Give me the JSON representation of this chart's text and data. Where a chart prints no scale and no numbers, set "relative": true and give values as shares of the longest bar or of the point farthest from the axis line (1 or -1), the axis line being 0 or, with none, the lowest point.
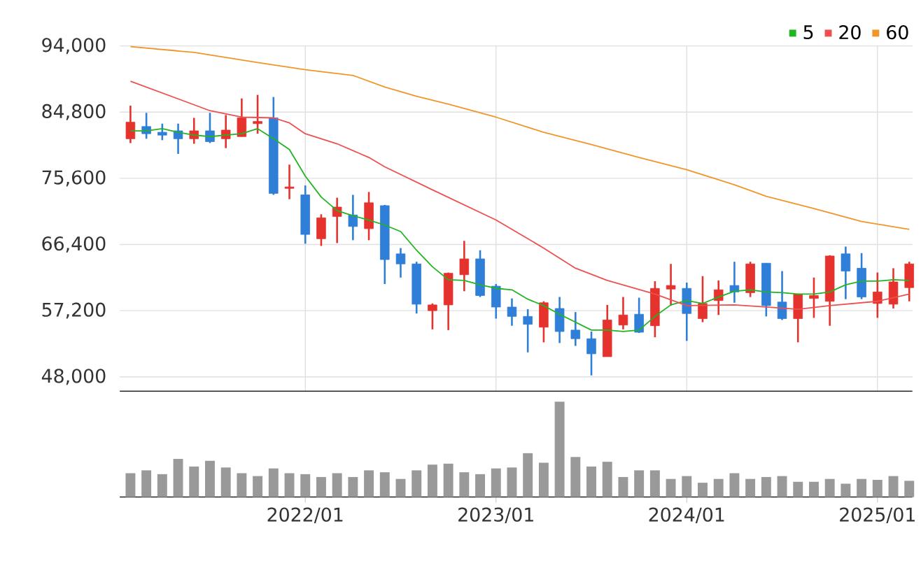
{
  "chart_data": [
    {
      "type": "candlestick",
      "x": [
        "2021-02",
        "2021-03",
        "2021-04",
        "2021-05",
        "2021-06",
        "2021-07",
        "2021-08",
        "2021-09",
        "2021-10",
        "2021-11",
        "2021-12",
        "2022-01",
        "2022-02",
        "2022-03",
        "2022-04",
        "2022-05",
        "2022-06",
        "2022-07",
        "2022-08",
        "2022-09",
        "2022-10",
        "2022-11",
        "2022-12",
        "2023-01",
        "2023-02",
        "2023-03",
        "2023-04",
        "2023-05",
        "2023-06",
        "2023-07",
        "2023-08",
        "2023-09",
        "2023-10",
        "2023-11",
        "2023-12",
        "2024-01",
        "2024-02",
        "2024-03",
        "2024-04",
        "2024-05",
        "2024-06",
        "2024-07",
        "2024-08",
        "2024-09",
        "2024-10",
        "2024-11",
        "2024-12",
        "2025-01",
        "2025-02",
        "2025-03"
      ],
      "ohlc": [
        [
          81100,
          85700,
          80500,
          83400
        ],
        [
          82800,
          84700,
          81100,
          81800
        ],
        [
          82000,
          83200,
          80900,
          81600
        ],
        [
          82200,
          83200,
          79000,
          81100
        ],
        [
          81100,
          84000,
          80400,
          82200
        ],
        [
          82200,
          84700,
          80500,
          80700
        ],
        [
          81100,
          84400,
          79800,
          82300
        ],
        [
          81400,
          86700,
          81400,
          84000
        ],
        [
          83200,
          87200,
          81800,
          83500
        ],
        [
          84000,
          86900,
          73300,
          73500
        ],
        [
          74200,
          77500,
          72700,
          74400
        ],
        [
          73300,
          74600,
          66500,
          67800
        ],
        [
          67200,
          70600,
          66200,
          70100
        ],
        [
          70300,
          72900,
          66600,
          71600
        ],
        [
          70500,
          73300,
          67000,
          68900
        ],
        [
          68600,
          73700,
          67000,
          72200
        ],
        [
          71800,
          71900,
          60900,
          64300
        ],
        [
          65100,
          65900,
          61800,
          63700
        ],
        [
          63700,
          64000,
          56800,
          58100
        ],
        [
          57200,
          58200,
          54600,
          58000
        ],
        [
          58000,
          62500,
          54500,
          62400
        ],
        [
          62200,
          66900,
          59900,
          64400
        ],
        [
          64400,
          65600,
          59100,
          59300
        ],
        [
          60600,
          60900,
          56100,
          57700
        ],
        [
          57700,
          58900,
          55100,
          56400
        ],
        [
          56400,
          57400,
          51400,
          55300
        ],
        [
          54900,
          58500,
          52800,
          58300
        ],
        [
          57500,
          59100,
          52700,
          54300
        ],
        [
          54500,
          57000,
          52300,
          53300
        ],
        [
          53300,
          54300,
          48200,
          51200
        ],
        [
          50800,
          58000,
          50800,
          55900
        ],
        [
          55200,
          59100,
          54600,
          56600
        ],
        [
          56700,
          59000,
          54100,
          54200
        ],
        [
          55100,
          61300,
          53500,
          60300
        ],
        [
          60200,
          63700,
          57900,
          60700
        ],
        [
          60300,
          61100,
          53000,
          56800
        ],
        [
          56100,
          62000,
          55600,
          58200
        ],
        [
          58600,
          61400,
          56600,
          60100
        ],
        [
          60700,
          64000,
          58300,
          59800
        ],
        [
          59700,
          64000,
          59100,
          63700
        ],
        [
          63800,
          63800,
          56400,
          57900
        ],
        [
          58400,
          62700,
          55900,
          56100
        ],
        [
          56100,
          59500,
          52800,
          59500
        ],
        [
          58900,
          61800,
          56200,
          59300
        ],
        [
          58500,
          64900,
          55100,
          64800
        ],
        [
          65100,
          66100,
          58800,
          62700
        ],
        [
          63100,
          65200,
          58800,
          59100
        ],
        [
          58200,
          62500,
          56200,
          59800
        ],
        [
          58100,
          63100,
          57500,
          61200
        ],
        [
          60400,
          64000,
          58500,
          63700
        ]
      ],
      "colors": [
        "#e5322d",
        "#2f7ed8",
        "#2f7ed8",
        "#2f7ed8",
        "#e5322d",
        "#2f7ed8",
        "#e5322d",
        "#e5322d",
        "#e5322d",
        "#2f7ed8",
        "#e5322d",
        "#2f7ed8",
        "#e5322d",
        "#e5322d",
        "#2f7ed8",
        "#e5322d",
        "#2f7ed8",
        "#2f7ed8",
        "#2f7ed8",
        "#e5322d",
        "#e5322d",
        "#e5322d",
        "#2f7ed8",
        "#2f7ed8",
        "#2f7ed8",
        "#2f7ed8",
        "#e5322d",
        "#2f7ed8",
        "#2f7ed8",
        "#2f7ed8",
        "#e5322d",
        "#e5322d",
        "#2f7ed8",
        "#e5322d",
        "#e5322d",
        "#2f7ed8",
        "#e5322d",
        "#e5322d",
        "#2f7ed8",
        "#e5322d",
        "#2f7ed8",
        "#2f7ed8",
        "#e5322d",
        "#e5322d",
        "#e5322d",
        "#2f7ed8",
        "#2f7ed8",
        "#e5322d",
        "#e5322d",
        "#e5322d"
      ],
      "series": [
        {
          "name": "5",
          "type": "line",
          "color": "#22b422",
          "x": [
            "2021-02",
            "2021-03",
            "2021-04",
            "2021-05",
            "2021-06",
            "2021-07",
            "2021-08",
            "2021-09",
            "2021-10",
            "2021-11",
            "2021-12",
            "2022-01",
            "2022-02",
            "2022-03",
            "2022-04",
            "2022-05",
            "2022-06",
            "2022-07",
            "2022-08",
            "2022-09",
            "2022-10",
            "2022-11",
            "2022-12",
            "2023-01",
            "2023-02",
            "2023-03",
            "2023-04",
            "2023-05",
            "2023-06",
            "2023-07",
            "2023-08",
            "2023-09",
            "2023-10",
            "2023-11",
            "2023-12",
            "2024-01",
            "2024-02",
            "2024-03",
            "2024-04",
            "2024-05",
            "2024-06",
            "2024-07",
            "2024-08",
            "2024-09",
            "2024-10",
            "2024-11",
            "2024-12",
            "2025-01",
            "2025-02",
            "2025-03"
          ],
          "values": [
            82200,
            82200,
            82500,
            82000,
            81600,
            81400,
            81600,
            81800,
            82500,
            81100,
            79600,
            75900,
            73000,
            71100,
            70400,
            69800,
            69100,
            68200,
            65600,
            63300,
            61500,
            61400,
            60800,
            60300,
            60100,
            58800,
            57900,
            56700,
            55600,
            54500,
            54500,
            54300,
            54500,
            56400,
            58000,
            58600,
            58200,
            59100,
            59900,
            60100,
            59800,
            59700,
            59500,
            59500,
            59800,
            60800,
            61300,
            61300,
            61500,
            61400
          ]
        },
        {
          "name": "20",
          "type": "line",
          "color": "#ee5050",
          "x": [
            "2021-02",
            "2021-07",
            "2021-09",
            "2021-11",
            "2021-12",
            "2022-01",
            "2022-03",
            "2022-05",
            "2022-06",
            "2022-09",
            "2023-01",
            "2023-04",
            "2023-06",
            "2023-08",
            "2023-11",
            "2024-01",
            "2024-04",
            "2024-06",
            "2024-08",
            "2024-10",
            "2025-01",
            "2025-03"
          ],
          "values": [
            89100,
            85000,
            84100,
            84000,
            83300,
            81800,
            80400,
            78500,
            77200,
            74000,
            69800,
            65900,
            63100,
            61400,
            59500,
            57900,
            58000,
            57700,
            57400,
            57900,
            58500,
            59500
          ]
        },
        {
          "name": "60",
          "type": "line",
          "color": "#f0952a",
          "x": [
            "2021-02",
            "2021-06",
            "2021-10",
            "2022-01",
            "2022-04",
            "2022-06",
            "2022-08",
            "2022-10",
            "2023-01",
            "2023-04",
            "2023-07",
            "2023-10",
            "2024-01",
            "2024-04",
            "2024-06",
            "2024-09",
            "2024-12",
            "2025-03"
          ],
          "values": [
            93900,
            93100,
            91700,
            90700,
            89900,
            88300,
            87000,
            85900,
            84100,
            82000,
            80300,
            78500,
            76800,
            74700,
            73100,
            71400,
            69600,
            68500
          ]
        }
      ],
      "xlim": [
        "2021-01-11",
        "2025-03-07"
      ],
      "xticks": [
        {
          "value": "2022-01",
          "label": null
        },
        {
          "value": "2023-01",
          "label": null
        },
        {
          "value": "2024-01",
          "label": null
        },
        {
          "value": "2025-01",
          "label": null
        }
      ],
      "ylim": [
        46000,
        94000
      ],
      "yticks": [
        {
          "value": 48000,
          "label": "48,000"
        },
        {
          "value": 57200,
          "label": "57,200"
        },
        {
          "value": 66400,
          "label": "66,400"
        },
        {
          "value": 75600,
          "label": "75,600"
        },
        {
          "value": 84800,
          "label": "84,800"
        },
        {
          "value": 94000,
          "label": "94,000"
        }
      ],
      "grid": true,
      "legend": "top right",
      "tick_labels": "y"
    },
    {
      "type": "bar",
      "relative": true,
      "color": "#999999",
      "x": [
        "2021-02",
        "2021-03",
        "2021-04",
        "2021-05",
        "2021-06",
        "2021-07",
        "2021-08",
        "2021-09",
        "2021-10",
        "2021-11",
        "2021-12",
        "2022-01",
        "2022-02",
        "2022-03",
        "2022-04",
        "2022-05",
        "2022-06",
        "2022-07",
        "2022-08",
        "2022-09",
        "2022-10",
        "2022-11",
        "2022-12",
        "2023-01",
        "2023-02",
        "2023-03",
        "2023-04",
        "2023-05",
        "2023-06",
        "2023-07",
        "2023-08",
        "2023-09",
        "2023-10",
        "2023-11",
        "2023-12",
        "2024-01",
        "2024-02",
        "2024-03",
        "2024-04",
        "2024-05",
        "2024-06",
        "2024-07",
        "2024-08",
        "2024-09",
        "2024-10",
        "2024-11",
        "2024-12",
        "2025-01",
        "2025-02",
        "2025-03"
      ],
      "values": [
        0.25,
        0.28,
        0.24,
        0.4,
        0.32,
        0.38,
        0.31,
        0.25,
        0.22,
        0.3,
        0.25,
        0.24,
        0.21,
        0.25,
        0.21,
        0.28,
        0.26,
        0.19,
        0.28,
        0.34,
        0.35,
        0.26,
        0.24,
        0.3,
        0.31,
        0.46,
        0.36,
        1,
        0.42,
        0.32,
        0.37,
        0.21,
        0.28,
        0.28,
        0.19,
        0.22,
        0.15,
        0.19,
        0.25,
        0.19,
        0.21,
        0.22,
        0.16,
        0.16,
        0.19,
        0.14,
        0.19,
        0.18,
        0.22,
        0.17
      ],
      "xlim": [
        "2021-01-11",
        "2025-03-07"
      ],
      "xticks": [
        {
          "value": "2022-01",
          "label": "2022/01"
        },
        {
          "value": "2023-01",
          "label": "2023/01"
        },
        {
          "value": "2024-01",
          "label": "2024/01"
        },
        {
          "value": "2025-01",
          "label": "2025/01"
        }
      ],
      "tick_labels": "x"
    }
  ]
}
